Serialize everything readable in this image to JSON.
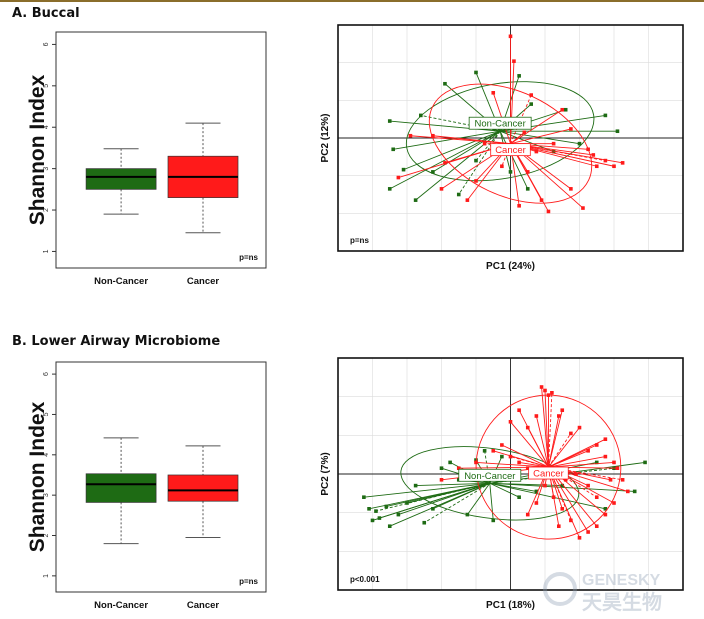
{
  "sections": [
    {
      "title": "A. Buccal"
    },
    {
      "title": "B. Lower Airway Microbiome"
    }
  ],
  "watermark": {
    "text_en": "GENESKY",
    "text_cn": "天昊生物"
  },
  "colors": {
    "noncancer": "#1e6b14",
    "cancer": "#ff1a1a",
    "grid": "#d8d8d8"
  },
  "chart_data": [
    {
      "type": "box",
      "panel": "A",
      "ylabel": "Shannon Index",
      "ylim": [
        0.6,
        6.3
      ],
      "yticks": [
        1,
        2,
        3,
        4,
        5,
        6
      ],
      "categories": [
        "Non-Cancer",
        "Cancer"
      ],
      "boxes": [
        {
          "name": "Non-Cancer",
          "color": "#1e6b14",
          "min": 1.9,
          "q1": 2.5,
          "median": 2.8,
          "q3": 3.0,
          "max": 3.48
        },
        {
          "name": "Cancer",
          "color": "#ff1a1a",
          "min": 1.45,
          "q1": 2.3,
          "median": 2.8,
          "q3": 3.3,
          "max": 4.1
        }
      ],
      "annotation": "p=ns"
    },
    {
      "type": "scatter",
      "panel": "A",
      "subtype": "PCA",
      "xlabel": "PC1 (24%)",
      "ylabel": "PC2 (12%)",
      "xlim": [
        -1,
        1
      ],
      "ylim": [
        -1,
        1
      ],
      "annotation": "p=ns",
      "series": [
        {
          "name": "Non-Cancer",
          "color": "#1e6b14",
          "centroid": [
            -0.06,
            0.06
          ],
          "ellipse": {
            "rx": 0.55,
            "ry": 0.42,
            "angle": 10
          },
          "points": [
            [
              -0.38,
              0.48
            ],
            [
              -0.2,
              0.58
            ],
            [
              0.05,
              0.55
            ],
            [
              -0.52,
              0.2
            ],
            [
              -0.7,
              0.15
            ],
            [
              -0.68,
              -0.1
            ],
            [
              -0.62,
              -0.28
            ],
            [
              -0.7,
              -0.45
            ],
            [
              -0.55,
              -0.55
            ],
            [
              -0.45,
              -0.3
            ],
            [
              -0.2,
              -0.2
            ],
            [
              0.1,
              -0.45
            ],
            [
              0.25,
              -0.12
            ],
            [
              0.55,
              0.2
            ],
            [
              0.62,
              0.06
            ],
            [
              0.12,
              0.3
            ],
            [
              0.32,
              0.25
            ],
            [
              -0.3,
              -0.5
            ],
            [
              0.0,
              -0.3
            ],
            [
              -0.15,
              0.1
            ],
            [
              0.4,
              -0.05
            ]
          ]
        },
        {
          "name": "Cancer",
          "color": "#ff1a1a",
          "centroid": [
            0.0,
            -0.05
          ],
          "ellipse": {
            "rx": 0.5,
            "ry": 0.46,
            "angle": -25
          },
          "points": [
            [
              0.0,
              0.9
            ],
            [
              0.02,
              0.68
            ],
            [
              -0.1,
              0.4
            ],
            [
              0.12,
              0.38
            ],
            [
              -0.58,
              0.02
            ],
            [
              -0.45,
              0.02
            ],
            [
              -0.38,
              -0.22
            ],
            [
              -0.65,
              -0.35
            ],
            [
              -0.4,
              -0.45
            ],
            [
              -0.2,
              -0.38
            ],
            [
              -0.05,
              -0.25
            ],
            [
              0.1,
              -0.3
            ],
            [
              0.18,
              -0.55
            ],
            [
              0.22,
              -0.65
            ],
            [
              0.35,
              -0.45
            ],
            [
              0.42,
              -0.62
            ],
            [
              0.5,
              -0.25
            ],
            [
              0.55,
              -0.2
            ],
            [
              0.6,
              -0.25
            ],
            [
              0.65,
              -0.22
            ],
            [
              0.45,
              -0.1
            ],
            [
              0.35,
              0.08
            ],
            [
              0.25,
              -0.05
            ],
            [
              0.08,
              0.05
            ],
            [
              -0.15,
              -0.05
            ],
            [
              0.15,
              -0.12
            ],
            [
              0.48,
              -0.15
            ],
            [
              0.3,
              0.25
            ],
            [
              0.05,
              -0.6
            ],
            [
              -0.25,
              -0.55
            ]
          ]
        }
      ]
    },
    {
      "type": "box",
      "panel": "B",
      "ylabel": "Shannon Index",
      "ylim": [
        0.6,
        6.3
      ],
      "yticks": [
        1,
        2,
        3,
        4,
        5,
        6
      ],
      "categories": [
        "Non-Cancer",
        "Cancer"
      ],
      "boxes": [
        {
          "name": "Non-Cancer",
          "color": "#1e6b14",
          "min": 1.8,
          "q1": 2.82,
          "median": 3.27,
          "q3": 3.53,
          "max": 4.42
        },
        {
          "name": "Cancer",
          "color": "#ff1a1a",
          "min": 1.95,
          "q1": 2.85,
          "median": 3.12,
          "q3": 3.5,
          "max": 4.22
        }
      ],
      "annotation": "p=ns"
    },
    {
      "type": "scatter",
      "panel": "B",
      "subtype": "PCA",
      "xlabel": "PC1 (18%)",
      "ylabel": "PC2 (7%)",
      "xlim": [
        -1,
        1
      ],
      "ylim": [
        -1,
        1
      ],
      "annotation": "p<0.001",
      "series": [
        {
          "name": "Non-Cancer",
          "color": "#1e6b14",
          "centroid": [
            -0.12,
            -0.08
          ],
          "ellipse": {
            "rx": 0.52,
            "ry": 0.3,
            "angle": -8
          },
          "points": [
            [
              -0.85,
              -0.2
            ],
            [
              -0.82,
              -0.3
            ],
            [
              -0.8,
              -0.4
            ],
            [
              -0.78,
              -0.32
            ],
            [
              -0.76,
              -0.38
            ],
            [
              -0.72,
              -0.28
            ],
            [
              -0.7,
              -0.45
            ],
            [
              -0.65,
              -0.35
            ],
            [
              -0.6,
              -0.25
            ],
            [
              -0.55,
              -0.1
            ],
            [
              -0.5,
              -0.42
            ],
            [
              -0.45,
              -0.3
            ],
            [
              -0.4,
              0.05
            ],
            [
              -0.35,
              0.1
            ],
            [
              -0.3,
              -0.05
            ],
            [
              -0.25,
              -0.35
            ],
            [
              -0.2,
              0.12
            ],
            [
              -0.15,
              0.2
            ],
            [
              -0.1,
              -0.4
            ],
            [
              -0.05,
              0.15
            ],
            [
              0.05,
              -0.2
            ],
            [
              0.15,
              -0.15
            ],
            [
              0.3,
              -0.1
            ],
            [
              0.5,
              0.1
            ],
            [
              0.6,
              0.05
            ],
            [
              0.72,
              -0.15
            ],
            [
              0.78,
              0.1
            ],
            [
              0.55,
              -0.3
            ]
          ]
        },
        {
          "name": "Cancer",
          "color": "#ff1a1a",
          "centroid": [
            0.22,
            0.06
          ],
          "ellipse": {
            "rx": 0.42,
            "ry": 0.62,
            "angle": -25
          },
          "points": [
            [
              0.18,
              0.75
            ],
            [
              0.2,
              0.72
            ],
            [
              0.22,
              0.68
            ],
            [
              0.24,
              0.7
            ],
            [
              0.05,
              0.55
            ],
            [
              0.0,
              0.45
            ],
            [
              0.1,
              0.4
            ],
            [
              0.15,
              0.5
            ],
            [
              0.28,
              0.5
            ],
            [
              0.3,
              0.55
            ],
            [
              0.35,
              0.35
            ],
            [
              0.4,
              0.4
            ],
            [
              0.45,
              0.2
            ],
            [
              0.5,
              0.25
            ],
            [
              0.55,
              0.15
            ],
            [
              0.6,
              0.1
            ],
            [
              0.62,
              0.05
            ],
            [
              0.65,
              -0.05
            ],
            [
              0.68,
              -0.15
            ],
            [
              0.6,
              -0.25
            ],
            [
              0.55,
              -0.35
            ],
            [
              0.5,
              -0.45
            ],
            [
              0.45,
              -0.5
            ],
            [
              0.4,
              -0.55
            ],
            [
              0.35,
              -0.4
            ],
            [
              0.3,
              -0.3
            ],
            [
              0.25,
              -0.2
            ],
            [
              0.2,
              -0.1
            ],
            [
              0.15,
              -0.25
            ],
            [
              0.1,
              -0.35
            ],
            [
              0.05,
              0.1
            ],
            [
              0.0,
              0.15
            ],
            [
              -0.05,
              0.25
            ],
            [
              -0.1,
              0.2
            ],
            [
              -0.2,
              0.1
            ],
            [
              -0.3,
              0.05
            ],
            [
              -0.4,
              -0.05
            ],
            [
              0.1,
              0.05
            ],
            [
              0.5,
              -0.2
            ],
            [
              0.45,
              -0.1
            ],
            [
              0.38,
              0.0
            ],
            [
              0.32,
              -0.05
            ],
            [
              0.28,
              -0.45
            ],
            [
              0.55,
              0.3
            ],
            [
              0.58,
              -0.05
            ]
          ]
        }
      ]
    }
  ]
}
